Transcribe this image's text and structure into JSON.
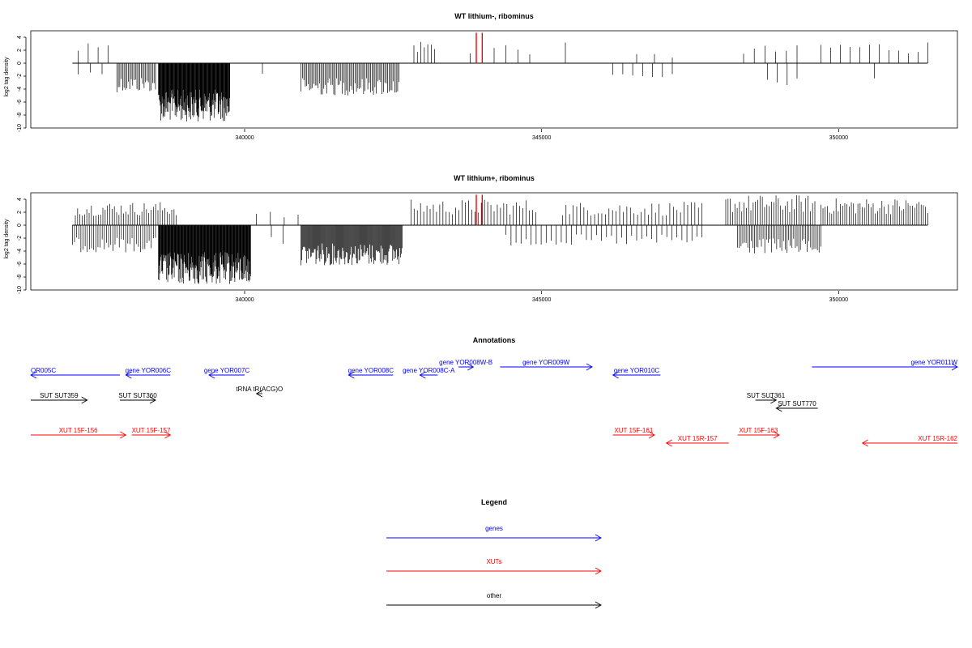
{
  "colors": {
    "gene": "#0000ff",
    "xut": "#ff0000",
    "other": "#000000",
    "mark": "#ff0000"
  },
  "chart_data": [
    {
      "type": "bar",
      "title": "WT lithium-, ribominus",
      "ylabel": "log2 tag density",
      "xlim": [
        336400,
        352000
      ],
      "ylim": [
        -10,
        5
      ],
      "x_ticks": [
        340000,
        345000,
        350000
      ],
      "x_tick_labels": [
        "340000",
        "345000",
        "350000"
      ],
      "y_ticks": [
        4,
        2,
        0,
        -2,
        -4,
        -6,
        -8,
        -10
      ],
      "y_tick_labels": [
        "4",
        "2",
        "0",
        "-2",
        "-4",
        "-6",
        "-8",
        "-10"
      ],
      "baseline_range": [
        337100,
        351500
      ],
      "markers_x": [
        343900,
        344000
      ],
      "positive_clusters": [
        {
          "start": 337200,
          "end": 337700,
          "n": 4,
          "max": 3.5
        },
        {
          "start": 342850,
          "end": 343200,
          "n": 7,
          "max": 3.7
        },
        {
          "start": 343800,
          "end": 344800,
          "n": 6,
          "max": 3.2
        },
        {
          "start": 345400,
          "end": 345420,
          "n": 1,
          "max": 3.2
        },
        {
          "start": 346600,
          "end": 347200,
          "n": 3,
          "max": 1.6
        },
        {
          "start": 348400,
          "end": 349300,
          "n": 6,
          "max": 2.8
        },
        {
          "start": 349700,
          "end": 351500,
          "n": 12,
          "max": 3.5
        }
      ],
      "negative_clusters": [
        {
          "start": 337200,
          "end": 337600,
          "n": 3,
          "min": -2.0
        },
        {
          "start": 337850,
          "end": 338500,
          "n": 28,
          "min": -4.5
        },
        {
          "start": 338550,
          "end": 339750,
          "n": 160,
          "min": -9.0
        },
        {
          "start": 340300,
          "end": 340350,
          "n": 1,
          "min": -2.5
        },
        {
          "start": 340950,
          "end": 342600,
          "n": 70,
          "min": -5.0
        },
        {
          "start": 346200,
          "end": 347200,
          "n": 7,
          "min": -2.7
        },
        {
          "start": 348800,
          "end": 349300,
          "n": 4,
          "min": -3.5
        },
        {
          "start": 350600,
          "end": 350650,
          "n": 1,
          "min": -3.8
        }
      ]
    },
    {
      "type": "bar",
      "title": "WT lithium+, ribominus",
      "ylabel": "log2 tag density",
      "xlim": [
        336400,
        352000
      ],
      "ylim": [
        -10,
        5
      ],
      "x_ticks": [
        340000,
        345000,
        350000
      ],
      "x_tick_labels": [
        "340000",
        "345000",
        "350000"
      ],
      "y_ticks": [
        4,
        2,
        0,
        -2,
        -4,
        -6,
        -8,
        -10
      ],
      "y_tick_labels": [
        "4",
        "2",
        "0",
        "-2",
        "-4",
        "-6",
        "-8",
        "-10"
      ],
      "baseline_range": [
        337100,
        351500
      ],
      "markers_x": [
        343900,
        344000
      ],
      "positive_clusters": [
        {
          "start": 337150,
          "end": 338850,
          "n": 45,
          "max": 3.6
        },
        {
          "start": 340200,
          "end": 340900,
          "n": 4,
          "max": 2.2
        },
        {
          "start": 342800,
          "end": 344900,
          "n": 40,
          "max": 4.0
        },
        {
          "start": 345350,
          "end": 347700,
          "n": 40,
          "max": 3.6
        },
        {
          "start": 348100,
          "end": 349600,
          "n": 40,
          "max": 4.7
        },
        {
          "start": 349700,
          "end": 351500,
          "n": 50,
          "max": 4.2
        }
      ],
      "negative_clusters": [
        {
          "start": 337100,
          "end": 338500,
          "n": 40,
          "min": -4.2
        },
        {
          "start": 338550,
          "end": 340100,
          "n": 200,
          "min": -9.2
        },
        {
          "start": 340450,
          "end": 340650,
          "n": 2,
          "min": -3.0
        },
        {
          "start": 340950,
          "end": 342650,
          "n": 130,
          "min": -6.2
        },
        {
          "start": 344400,
          "end": 347700,
          "n": 40,
          "min": -3.2
        },
        {
          "start": 348300,
          "end": 349700,
          "n": 50,
          "min": -4.5
        }
      ]
    }
  ],
  "annotations": {
    "title": "Annotations",
    "items": [
      {
        "label": "OR005C",
        "kind": "gene",
        "dir": "left",
        "x1": 336400,
        "x2": 337900,
        "row": 0
      },
      {
        "label": "gene YOR006C",
        "kind": "gene",
        "dir": "left",
        "x1": 338000,
        "x2": 338750,
        "row": 0
      },
      {
        "label": "gene YOR007C",
        "kind": "gene",
        "dir": "left",
        "x1": 339400,
        "x2": 340000,
        "row": 0
      },
      {
        "label": "gene YOR008C",
        "kind": "gene",
        "dir": "left",
        "x1": 341750,
        "x2": 342500,
        "row": 0
      },
      {
        "label": "gene YOR008C-A",
        "kind": "gene",
        "dir": "left",
        "x1": 342950,
        "x2": 343250,
        "row": 0
      },
      {
        "label": "gene YOR008W-B",
        "kind": "gene",
        "dir": "right",
        "x1": 343600,
        "x2": 343850,
        "row": 1
      },
      {
        "label": "gene YOR009W",
        "kind": "gene",
        "dir": "right",
        "x1": 344300,
        "x2": 345850,
        "row": 1
      },
      {
        "label": "gene YOR010C",
        "kind": "gene",
        "dir": "left",
        "x1": 346200,
        "x2": 347000,
        "row": 0
      },
      {
        "label": "gene YOR011W",
        "kind": "gene",
        "dir": "right",
        "x1": 349550,
        "x2": 352000,
        "row": 1
      },
      {
        "label": "tRNA tR(ACG)O",
        "kind": "other",
        "dir": "left",
        "x1": 340200,
        "x2": 340300,
        "row": 2
      },
      {
        "label": "SUT SUT359",
        "kind": "other",
        "dir": "right",
        "x1": 336400,
        "x2": 337350,
        "row": 3
      },
      {
        "label": "SUT SUT360",
        "kind": "other",
        "dir": "right",
        "x1": 337900,
        "x2": 338500,
        "row": 3
      },
      {
        "label": "SUT SUT361",
        "kind": "other",
        "dir": "right",
        "x1": 348600,
        "x2": 348950,
        "row": 3
      },
      {
        "label": "SUT SUT770",
        "kind": "other",
        "dir": "left",
        "x1": 348950,
        "x2": 349650,
        "row": 4
      },
      {
        "label": "XUT 15F-156",
        "kind": "xut",
        "dir": "right",
        "x1": 336400,
        "x2": 338000,
        "row": 5
      },
      {
        "label": "XUT 15F-157",
        "kind": "xut",
        "dir": "right",
        "x1": 338100,
        "x2": 338750,
        "row": 5
      },
      {
        "label": "XUT 15F-161",
        "kind": "xut",
        "dir": "right",
        "x1": 346200,
        "x2": 346900,
        "row": 5
      },
      {
        "label": "XUT 15R-157",
        "kind": "xut",
        "dir": "left",
        "x1": 347100,
        "x2": 348150,
        "row": 6
      },
      {
        "label": "XUT 15F-163",
        "kind": "xut",
        "dir": "right",
        "x1": 348300,
        "x2": 349000,
        "row": 5
      },
      {
        "label": "XUT 15R-162",
        "kind": "xut",
        "dir": "left",
        "x1": 350400,
        "x2": 352000,
        "row": 6
      }
    ]
  },
  "legend": {
    "title": "Legend",
    "entries": [
      {
        "label": "genes",
        "kind": "gene"
      },
      {
        "label": "XUTs",
        "kind": "xut"
      },
      {
        "label": "other",
        "kind": "other"
      }
    ]
  }
}
